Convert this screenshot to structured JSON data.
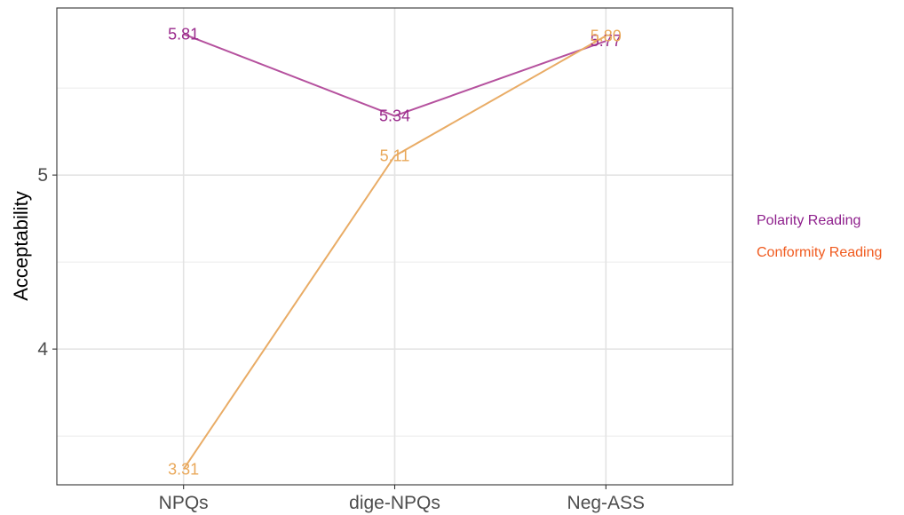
{
  "chart_data": {
    "type": "line",
    "categories": [
      "NPQs",
      "dige-NPQs",
      "Neg-ASS"
    ],
    "ylabel": "Acceptability",
    "xlabel": "",
    "ylim": [
      3.22,
      5.96
    ],
    "yticks": [
      4,
      5
    ],
    "grid": true,
    "legend_placement": "right",
    "series": [
      {
        "name": "Polarity Reading",
        "values": [
          5.81,
          5.34,
          5.77
        ],
        "labels": [
          "5.81",
          "5.34",
          "5.77"
        ],
        "line_color": "#b5519e",
        "text_color": "#9a2a8c",
        "legend_color": "#8e1f8c"
      },
      {
        "name": "Conformity Reading",
        "values": [
          3.31,
          5.11,
          5.8
        ],
        "labels": [
          "3.31",
          "5.11",
          "5.80"
        ],
        "line_color": "#e9ac66",
        "text_color": "#e9a85a",
        "legend_color": "#f05a1e"
      }
    ]
  }
}
